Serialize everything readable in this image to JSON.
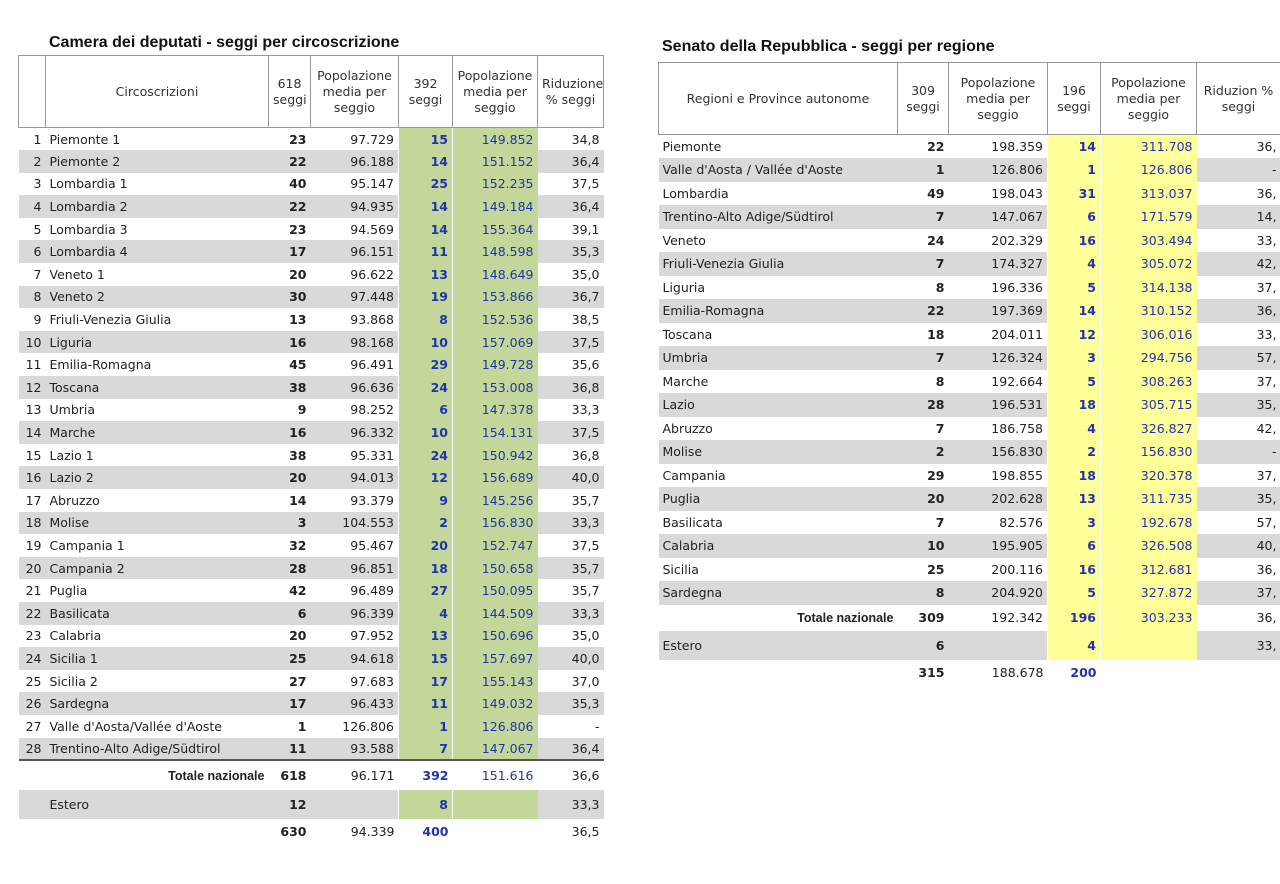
{
  "camera": {
    "title": "Camera dei deputati - seggi per circoscrizione",
    "header": [
      null,
      "Circoscrizioni",
      "618 seggi",
      "Popolazione media per seggio",
      "392 seggi",
      "Popolazione media per seggio",
      "Riduzione % seggi"
    ],
    "rows": [
      [
        1,
        "Piemonte 1",
        23,
        "97.729",
        15,
        "149.852",
        "34,8"
      ],
      [
        2,
        "Piemonte 2",
        22,
        "96.188",
        14,
        "151.152",
        "36,4"
      ],
      [
        3,
        "Lombardia 1",
        40,
        "95.147",
        25,
        "152.235",
        "37,5"
      ],
      [
        4,
        "Lombardia 2",
        22,
        "94.935",
        14,
        "149.184",
        "36,4"
      ],
      [
        5,
        "Lombardia 3",
        23,
        "94.569",
        14,
        "155.364",
        "39,1"
      ],
      [
        6,
        "Lombardia 4",
        17,
        "96.151",
        11,
        "148.598",
        "35,3"
      ],
      [
        7,
        "Veneto 1",
        20,
        "96.622",
        13,
        "148.649",
        "35,0"
      ],
      [
        8,
        "Veneto 2",
        30,
        "97.448",
        19,
        "153.866",
        "36,7"
      ],
      [
        9,
        "Friuli-Venezia Giulia",
        13,
        "93.868",
        8,
        "152.536",
        "38,5"
      ],
      [
        10,
        "Liguria",
        16,
        "98.168",
        10,
        "157.069",
        "37,5"
      ],
      [
        11,
        "Emilia-Romagna",
        45,
        "96.491",
        29,
        "149.728",
        "35,6"
      ],
      [
        12,
        "Toscana",
        38,
        "96.636",
        24,
        "153.008",
        "36,8"
      ],
      [
        13,
        "Umbria",
        9,
        "98.252",
        6,
        "147.378",
        "33,3"
      ],
      [
        14,
        "Marche",
        16,
        "96.332",
        10,
        "154.131",
        "37,5"
      ],
      [
        15,
        "Lazio 1",
        38,
        "95.331",
        24,
        "150.942",
        "36,8"
      ],
      [
        16,
        "Lazio 2",
        20,
        "94.013",
        12,
        "156.689",
        "40,0"
      ],
      [
        17,
        "Abruzzo",
        14,
        "93.379",
        9,
        "145.256",
        "35,7"
      ],
      [
        18,
        "Molise",
        3,
        "104.553",
        2,
        "156.830",
        "33,3"
      ],
      [
        19,
        "Campania 1",
        32,
        "95.467",
        20,
        "152.747",
        "37,5"
      ],
      [
        20,
        "Campania 2",
        28,
        "96.851",
        18,
        "150.658",
        "35,7"
      ],
      [
        21,
        "Puglia",
        42,
        "96.489",
        27,
        "150.095",
        "35,7"
      ],
      [
        22,
        "Basilicata",
        6,
        "96.339",
        4,
        "144.509",
        "33,3"
      ],
      [
        23,
        "Calabria",
        20,
        "97.952",
        13,
        "150.696",
        "35,0"
      ],
      [
        24,
        "Sicilia 1",
        25,
        "94.618",
        15,
        "157.697",
        "40,0"
      ],
      [
        25,
        "Sicilia 2",
        27,
        "97.683",
        17,
        "155.143",
        "37,0"
      ],
      [
        26,
        "Sardegna",
        17,
        "96.433",
        11,
        "149.032",
        "35,3"
      ],
      [
        27,
        "Valle d'Aosta/Vallée d'Aoste",
        1,
        "126.806",
        1,
        "126.806",
        "-"
      ],
      [
        28,
        "Trentino-Alto Adige/Südtirol",
        11,
        "93.588",
        7,
        "147.067",
        "36,4"
      ]
    ],
    "total": [
      null,
      "Totale nazionale",
      618,
      "96.171",
      392,
      "151.616",
      "36,6"
    ],
    "estero": [
      null,
      "Estero",
      12,
      null,
      8,
      null,
      "33,3"
    ],
    "grand": [
      null,
      null,
      630,
      "94.339",
      400,
      null,
      "36,5"
    ]
  },
  "senato": {
    "title": "Senato della Repubblica - seggi per regione",
    "header": [
      "Regioni e Province autonome",
      "309 seggi",
      "Popolazione media per seggio",
      "196 seggi",
      "Popolazione media per seggio",
      "Riduzion % seggi"
    ],
    "rows": [
      [
        "Piemonte",
        22,
        "198.359",
        14,
        "311.708",
        "36,"
      ],
      [
        "Valle d'Aosta / Vallée d'Aoste",
        1,
        "126.806",
        1,
        "126.806",
        "-"
      ],
      [
        "Lombardia",
        49,
        "198.043",
        31,
        "313.037",
        "36,"
      ],
      [
        "Trentino-Alto Adige/Südtirol",
        7,
        "147.067",
        6,
        "171.579",
        "14,"
      ],
      [
        "Veneto",
        24,
        "202.329",
        16,
        "303.494",
        "33,"
      ],
      [
        "Friuli-Venezia Giulia",
        7,
        "174.327",
        4,
        "305.072",
        "42,"
      ],
      [
        "Liguria",
        8,
        "196.336",
        5,
        "314.138",
        "37,"
      ],
      [
        "Emilia-Romagna",
        22,
        "197.369",
        14,
        "310.152",
        "36,"
      ],
      [
        "Toscana",
        18,
        "204.011",
        12,
        "306.016",
        "33,"
      ],
      [
        "Umbria",
        7,
        "126.324",
        3,
        "294.756",
        "57,"
      ],
      [
        "Marche",
        8,
        "192.664",
        5,
        "308.263",
        "37,"
      ],
      [
        "Lazio",
        28,
        "196.531",
        18,
        "305.715",
        "35,"
      ],
      [
        "Abruzzo",
        7,
        "186.758",
        4,
        "326.827",
        "42,"
      ],
      [
        "Molise",
        2,
        "156.830",
        2,
        "156.830",
        "-"
      ],
      [
        "Campania",
        29,
        "198.855",
        18,
        "320.378",
        "37,"
      ],
      [
        "Puglia",
        20,
        "202.628",
        13,
        "311.735",
        "35,"
      ],
      [
        "Basilicata",
        7,
        "82.576",
        3,
        "192.678",
        "57,"
      ],
      [
        "Calabria",
        10,
        "195.905",
        6,
        "326.508",
        "40,"
      ],
      [
        "Sicilia",
        25,
        "200.116",
        16,
        "312.681",
        "36,"
      ],
      [
        "Sardegna",
        8,
        "204.920",
        5,
        "327.872",
        "37,"
      ]
    ],
    "total": [
      "Totale nazionale",
      309,
      "192.342",
      196,
      "303.233",
      "36,"
    ],
    "estero": [
      "Estero",
      6,
      null,
      4,
      null,
      "33,"
    ],
    "grand": [
      null,
      315,
      "188.678",
      200,
      null,
      null
    ]
  }
}
